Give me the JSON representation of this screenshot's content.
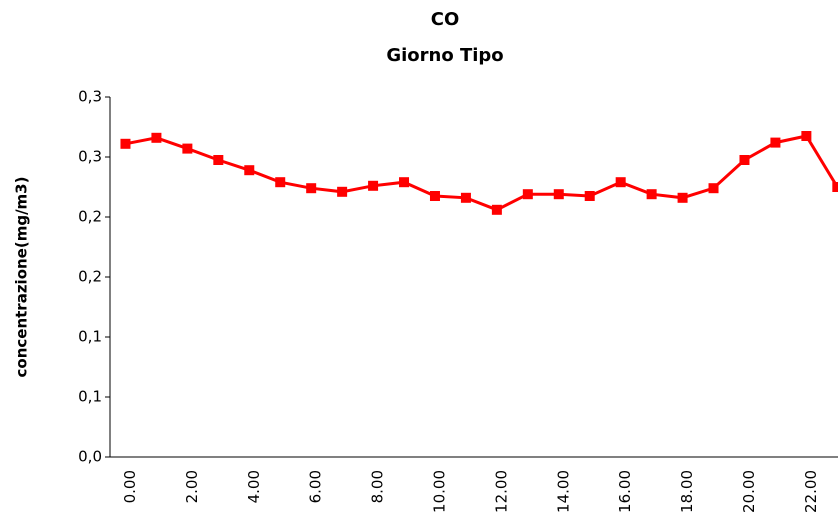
{
  "chart_data": {
    "type": "line",
    "title": "CO",
    "subtitle": "Giorno Tipo",
    "y_label": "concentrazione(mg/m3)",
    "categories": [
      "0.00",
      null,
      "2.00",
      null,
      "4.00",
      null,
      "6.00",
      null,
      "8.00",
      null,
      "10.00",
      null,
      "12.00",
      null,
      "14.00",
      null,
      "16.00",
      null,
      "18.00",
      null,
      "20.00",
      null,
      "22.00",
      null
    ],
    "series": [
      {
        "name": "CO",
        "color": "#ff0000",
        "values": [
          0.261,
          0.266,
          0.257,
          0.2475,
          0.239,
          0.229,
          0.224,
          0.221,
          0.226,
          0.229,
          0.2175,
          0.216,
          0.206,
          0.219,
          0.219,
          0.2175,
          0.229,
          0.219,
          0.216,
          0.224,
          0.2475,
          0.262,
          0.2675,
          0.225
        ]
      }
    ],
    "ylim": [
      0,
      0.3
    ],
    "yticks": [
      {
        "value": 0,
        "label": "0,0"
      },
      {
        "value": 0.05,
        "label": "0,1"
      },
      {
        "value": 0.1,
        "label": "0,1"
      },
      {
        "value": 0.15,
        "label": "0,2"
      },
      {
        "value": 0.2,
        "label": "0,2"
      },
      {
        "value": 0.25,
        "label": "0,3"
      },
      {
        "value": 0.3,
        "label": "0,3"
      }
    ],
    "grid": false
  }
}
